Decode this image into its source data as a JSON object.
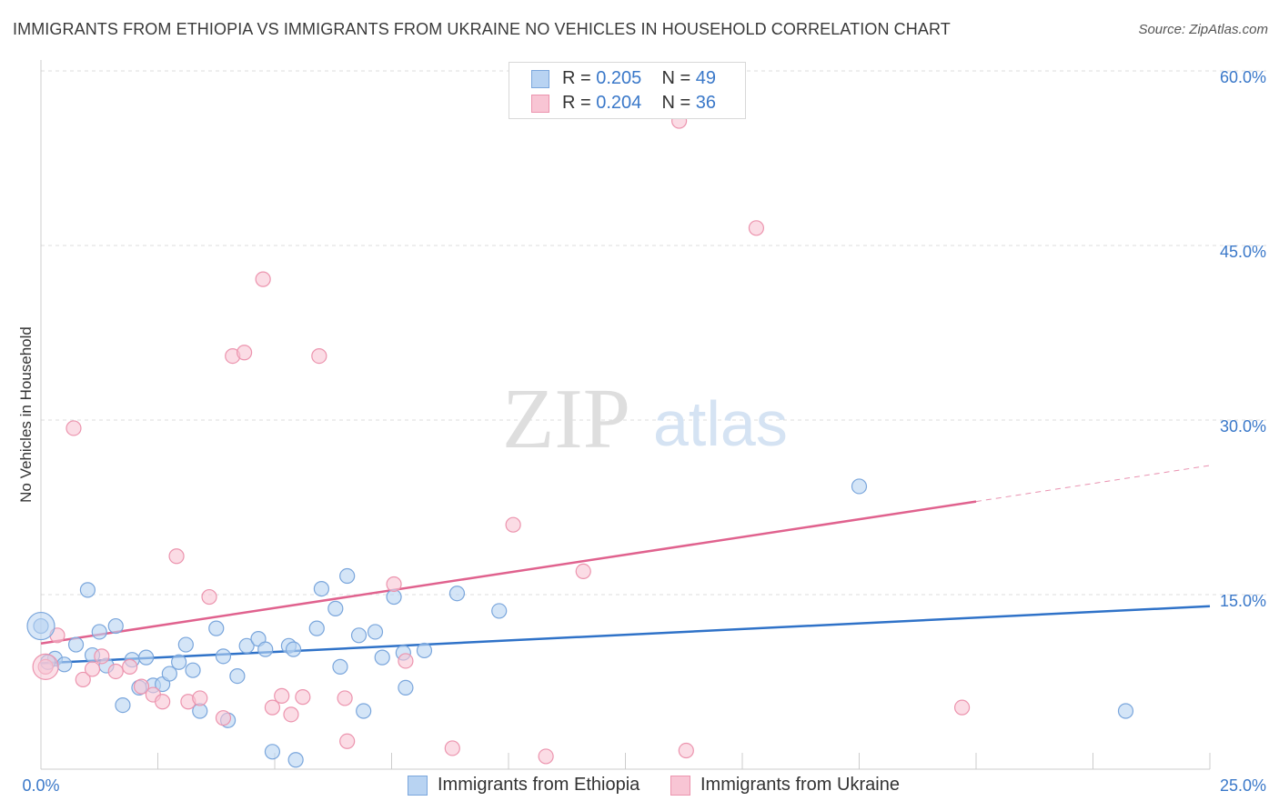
{
  "title": "IMMIGRANTS FROM ETHIOPIA VS IMMIGRANTS FROM UKRAINE NO VEHICLES IN HOUSEHOLD CORRELATION CHART",
  "source": "Source: ZipAtlas.com",
  "watermark": {
    "zip": "ZIP",
    "atlas": "atlas"
  },
  "legend": {
    "ethiopia": {
      "r_label": "R =",
      "r_value": "0.205",
      "n_label": "N =",
      "n_value": "49"
    },
    "ukraine": {
      "r_label": "R =",
      "r_value": "0.204",
      "n_label": "N =",
      "n_value": "36"
    }
  },
  "bottom_legend": {
    "ethiopia": "Immigrants from Ethiopia",
    "ukraine": "Immigrants from Ukraine"
  },
  "colors": {
    "ethiopia_fill": "#b8d3f2",
    "ethiopia_stroke": "#7aa6dc",
    "ethiopia_line": "#2f72c8",
    "ukraine_fill": "#f8c5d4",
    "ukraine_stroke": "#ec94ae",
    "ukraine_line": "#e0628e",
    "tick_label": "#3a78c9",
    "grid": "#dddddd"
  },
  "chart_data": {
    "type": "scatter",
    "xlabel": "",
    "ylabel": "No Vehicles in Household",
    "xlim": [
      0,
      25
    ],
    "ylim": [
      0,
      60
    ],
    "x_tick_labels": [
      "0.0%",
      "25.0%"
    ],
    "y_ticks": [
      15,
      30,
      45,
      60
    ],
    "y_tick_labels": [
      "15.0%",
      "30.0%",
      "45.0%",
      "60.0%"
    ],
    "grid": true,
    "legend_position": "top-center",
    "series": [
      {
        "name": "Immigrants from Ethiopia",
        "r": 0.205,
        "n": 49,
        "trend": {
          "x": [
            0,
            25
          ],
          "y": [
            9.1,
            14.0
          ]
        },
        "points": [
          [
            0.0,
            12.3
          ],
          [
            0.3,
            9.5
          ],
          [
            0.5,
            9.0
          ],
          [
            0.75,
            10.7
          ],
          [
            1.0,
            15.4
          ],
          [
            1.1,
            9.8
          ],
          [
            1.25,
            11.8
          ],
          [
            1.4,
            8.9
          ],
          [
            1.6,
            12.3
          ],
          [
            1.75,
            5.5
          ],
          [
            1.95,
            9.4
          ],
          [
            2.1,
            7.0
          ],
          [
            2.25,
            9.6
          ],
          [
            2.4,
            7.2
          ],
          [
            2.6,
            7.3
          ],
          [
            2.75,
            8.2
          ],
          [
            2.95,
            9.2
          ],
          [
            3.1,
            10.7
          ],
          [
            3.25,
            8.5
          ],
          [
            3.4,
            5.0
          ],
          [
            3.75,
            12.1
          ],
          [
            3.9,
            9.7
          ],
          [
            4.0,
            4.2
          ],
          [
            4.2,
            8.0
          ],
          [
            4.4,
            10.6
          ],
          [
            4.65,
            11.2
          ],
          [
            4.8,
            10.3
          ],
          [
            4.95,
            1.5
          ],
          [
            5.3,
            10.6
          ],
          [
            5.4,
            10.3
          ],
          [
            5.45,
            0.8
          ],
          [
            5.9,
            12.1
          ],
          [
            6.0,
            15.5
          ],
          [
            6.3,
            13.8
          ],
          [
            6.4,
            8.8
          ],
          [
            6.55,
            16.6
          ],
          [
            6.8,
            11.5
          ],
          [
            6.9,
            5.0
          ],
          [
            7.15,
            11.8
          ],
          [
            7.3,
            9.6
          ],
          [
            7.55,
            14.8
          ],
          [
            7.75,
            10.0
          ],
          [
            7.8,
            7.0
          ],
          [
            8.2,
            10.2
          ],
          [
            8.9,
            15.1
          ],
          [
            9.8,
            13.6
          ],
          [
            17.5,
            24.3
          ],
          [
            23.2,
            5.0
          ],
          [
            0.15,
            9.2
          ]
        ]
      },
      {
        "name": "Immigrants from Ukraine",
        "r": 0.204,
        "n": 36,
        "trend": {
          "x": [
            0,
            20
          ],
          "y": [
            10.8,
            23.0
          ]
        },
        "trend_dashed": {
          "x": [
            20,
            25
          ],
          "y": [
            23.0,
            26.1
          ]
        },
        "points": [
          [
            0.1,
            8.8
          ],
          [
            0.35,
            11.5
          ],
          [
            0.7,
            29.3
          ],
          [
            0.9,
            7.7
          ],
          [
            1.1,
            8.6
          ],
          [
            1.3,
            9.7
          ],
          [
            1.6,
            8.4
          ],
          [
            1.9,
            8.8
          ],
          [
            2.15,
            7.1
          ],
          [
            2.4,
            6.4
          ],
          [
            2.6,
            5.8
          ],
          [
            2.9,
            18.3
          ],
          [
            3.15,
            5.8
          ],
          [
            3.4,
            6.1
          ],
          [
            3.6,
            14.8
          ],
          [
            3.9,
            4.4
          ],
          [
            4.1,
            35.5
          ],
          [
            4.35,
            35.8
          ],
          [
            4.75,
            42.1
          ],
          [
            4.95,
            5.3
          ],
          [
            5.15,
            6.3
          ],
          [
            5.35,
            4.7
          ],
          [
            5.6,
            6.2
          ],
          [
            5.95,
            35.5
          ],
          [
            6.5,
            6.1
          ],
          [
            6.55,
            2.4
          ],
          [
            7.55,
            15.9
          ],
          [
            7.8,
            9.3
          ],
          [
            8.8,
            1.8
          ],
          [
            10.1,
            21.0
          ],
          [
            10.8,
            1.1
          ],
          [
            11.6,
            17.0
          ],
          [
            13.65,
            55.7
          ],
          [
            13.8,
            1.6
          ],
          [
            15.3,
            46.5
          ],
          [
            19.7,
            5.3
          ]
        ]
      }
    ]
  }
}
